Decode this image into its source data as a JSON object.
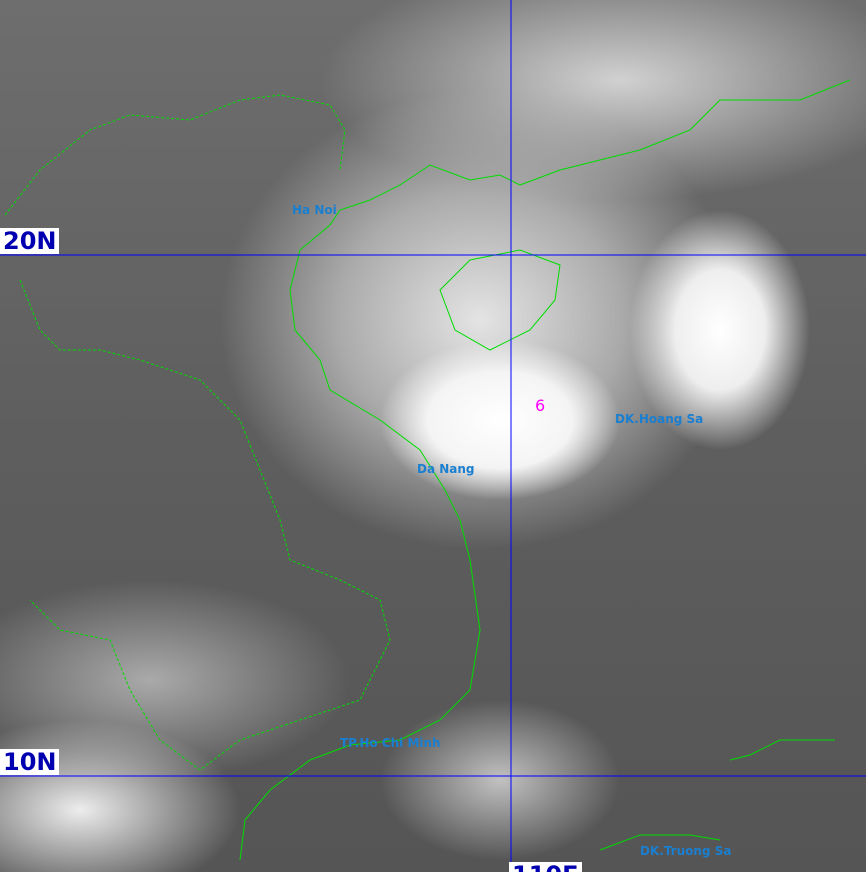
{
  "grid": {
    "lat_labels": [
      "20N",
      "10N"
    ],
    "lon_labels": [
      "110E"
    ],
    "line_color": "#0000ff"
  },
  "places": {
    "ha_noi": "Ha Noi",
    "da_nang": "Da Nang",
    "hoang_sa": "DK.Hoang Sa",
    "ho_chi_minh": "TP.Ho Chi Minh",
    "truong_sa": "DK.Truong Sa"
  },
  "storm": {
    "symbol": "typhoon-icon",
    "glyph": "6",
    "color": "#ff00ff"
  },
  "coastline_color": "#00dd00",
  "place_color": "#1a7fd0"
}
